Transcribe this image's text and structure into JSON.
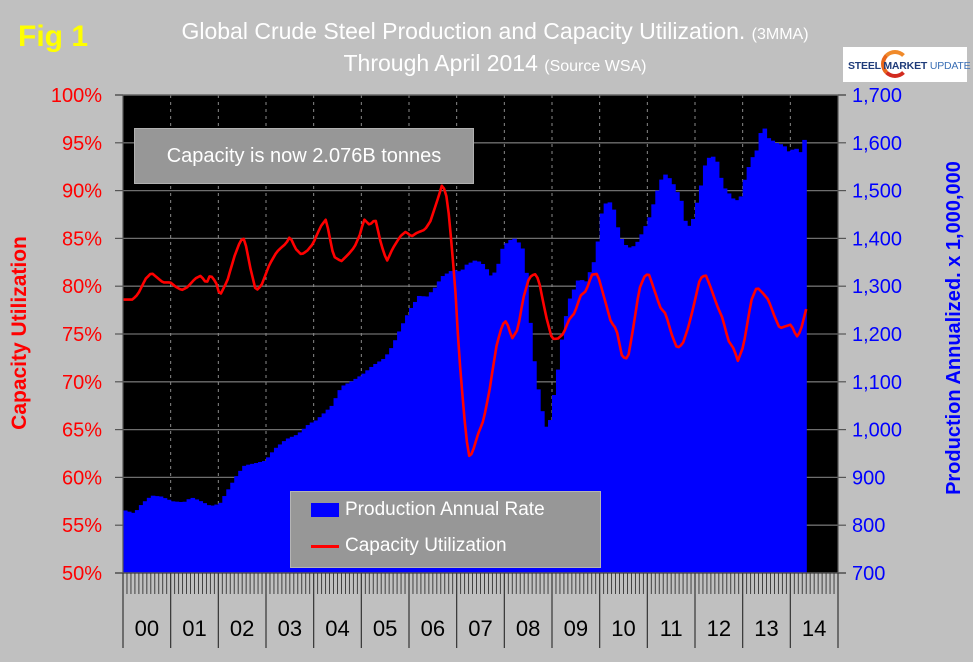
{
  "figure": {
    "fig_label": "Fig 1",
    "title_line1": "Global Crude Steel Production and Capacity Utilization.",
    "title_line1_note": "(3MMA)",
    "title_line2": "Through April 2014",
    "title_line2_note": "(Source WSA)",
    "logo": {
      "word1": "STEEL",
      "word2": "MARKET",
      "word3": "UPDATE"
    },
    "annotation": "Capacity is now 2.076B tonnes"
  },
  "chart_data": {
    "type": "bar+line",
    "title": "Global Crude Steel Production and Capacity Utilization. (3MMA) Through April 2014 (Source WSA)",
    "xlabel": "",
    "ylabel_left": "Capacity Utilization",
    "ylabel_right": "Production Annualized. x 1,000,000",
    "ylim_left": [
      50,
      100
    ],
    "ylim_right": [
      700,
      1700
    ],
    "yticks_left": [
      "50%",
      "55%",
      "60%",
      "65%",
      "70%",
      "75%",
      "80%",
      "85%",
      "90%",
      "95%",
      "100%"
    ],
    "yticks_right": [
      "700",
      "800",
      "900",
      "1,000",
      "1,100",
      "1,200",
      "1,300",
      "1,400",
      "1,500",
      "1,600",
      "1,700"
    ],
    "x_categories": [
      "00",
      "01",
      "02",
      "03",
      "04",
      "05",
      "06",
      "07",
      "08",
      "09",
      "10",
      "11",
      "12",
      "13",
      "14"
    ],
    "x_range": "Jan 2000 - Apr 2014 (monthly)",
    "grid": true,
    "legend": {
      "placement": "bottom-center",
      "entries": [
        "Production Annual Rate",
        "Capacity Utilization"
      ]
    },
    "series": [
      {
        "name": "Production Annual Rate",
        "axis": "right",
        "type": "bar",
        "color": "#0000ff",
        "points_year_fraction": [
          [
            0.0,
            832
          ],
          [
            0.3,
            825
          ],
          [
            0.5,
            845
          ],
          [
            0.75,
            862
          ],
          [
            1.0,
            860
          ],
          [
            1.3,
            850
          ],
          [
            1.6,
            848
          ],
          [
            1.8,
            858
          ],
          [
            2.0,
            852
          ],
          [
            2.3,
            840
          ],
          [
            2.55,
            845
          ],
          [
            2.75,
            872
          ],
          [
            3.0,
            905
          ],
          [
            3.2,
            925
          ],
          [
            3.5,
            930
          ],
          [
            3.75,
            935
          ],
          [
            4.0,
            960
          ],
          [
            4.3,
            980
          ],
          [
            4.6,
            990
          ],
          [
            4.9,
            1012
          ],
          [
            5.1,
            1020
          ],
          [
            5.5,
            1050
          ],
          [
            5.75,
            1090
          ],
          [
            6.0,
            1100
          ],
          [
            6.3,
            1115
          ],
          [
            6.6,
            1135
          ],
          [
            6.9,
            1150
          ],
          [
            7.1,
            1175
          ],
          [
            7.3,
            1210
          ],
          [
            7.55,
            1250
          ],
          [
            7.8,
            1280
          ],
          [
            8.0,
            1278
          ],
          [
            8.2,
            1295
          ],
          [
            8.4,
            1320
          ],
          [
            8.7,
            1335
          ],
          [
            8.9,
            1330
          ],
          [
            9.05,
            1345
          ],
          [
            9.3,
            1355
          ],
          [
            9.5,
            1345
          ],
          [
            9.7,
            1320
          ],
          [
            9.85,
            1335
          ],
          [
            10.0,
            1380
          ],
          [
            10.15,
            1395
          ],
          [
            10.3,
            1400
          ],
          [
            10.5,
            1385
          ],
          [
            10.6,
            1350
          ],
          [
            10.75,
            1200
          ],
          [
            10.9,
            1095
          ],
          [
            11.0,
            1065
          ],
          [
            11.1,
            1000
          ],
          [
            11.25,
            1020
          ],
          [
            11.45,
            1120
          ],
          [
            11.6,
            1210
          ],
          [
            11.75,
            1270
          ],
          [
            12.0,
            1315
          ],
          [
            12.2,
            1310
          ],
          [
            12.45,
            1360
          ],
          [
            12.6,
            1450
          ],
          [
            12.75,
            1480
          ],
          [
            12.9,
            1470
          ],
          [
            13.0,
            1430
          ],
          [
            13.15,
            1395
          ],
          [
            13.3,
            1380
          ],
          [
            13.5,
            1385
          ],
          [
            13.7,
            1415
          ],
          [
            13.9,
            1450
          ],
          [
            14.0,
            1480
          ],
          [
            14.15,
            1520
          ],
          [
            14.3,
            1535
          ],
          [
            14.45,
            1520
          ],
          [
            14.55,
            1505
          ],
          [
            14.7,
            1480
          ],
          [
            14.85,
            1420
          ],
          [
            15.0,
            1435
          ],
          [
            15.2,
            1500
          ],
          [
            15.35,
            1560
          ],
          [
            15.5,
            1575
          ],
          [
            15.65,
            1560
          ],
          [
            15.8,
            1510
          ],
          [
            15.95,
            1495
          ],
          [
            16.1,
            1480
          ],
          [
            16.25,
            1480
          ],
          [
            16.4,
            1530
          ],
          [
            16.55,
            1565
          ],
          [
            16.7,
            1585
          ],
          [
            16.85,
            1640
          ],
          [
            17.0,
            1610
          ],
          [
            17.2,
            1600
          ],
          [
            17.4,
            1595
          ],
          [
            17.55,
            1580
          ],
          [
            17.7,
            1590
          ],
          [
            17.85,
            1580
          ],
          [
            18.0,
            1620
          ]
        ]
      },
      {
        "name": "Capacity Utilization",
        "axis": "left",
        "type": "line",
        "color": "#ff0000",
        "points_year_fraction": [
          [
            0.0,
            78.6
          ],
          [
            0.25,
            78.6
          ],
          [
            0.4,
            79.2
          ],
          [
            0.6,
            80.8
          ],
          [
            0.75,
            81.4
          ],
          [
            0.9,
            80.9
          ],
          [
            1.05,
            80.4
          ],
          [
            1.25,
            80.4
          ],
          [
            1.4,
            79.9
          ],
          [
            1.55,
            79.6
          ],
          [
            1.7,
            79.9
          ],
          [
            1.9,
            80.8
          ],
          [
            2.05,
            81.1
          ],
          [
            2.2,
            80.3
          ],
          [
            2.3,
            81.2
          ],
          [
            2.45,
            80.4
          ],
          [
            2.55,
            79.0
          ],
          [
            2.75,
            80.6
          ],
          [
            2.95,
            83.3
          ],
          [
            3.1,
            84.8
          ],
          [
            3.2,
            85.0
          ],
          [
            3.35,
            82.0
          ],
          [
            3.5,
            79.5
          ],
          [
            3.65,
            80.1
          ],
          [
            3.85,
            82.2
          ],
          [
            4.05,
            83.6
          ],
          [
            4.3,
            84.5
          ],
          [
            4.4,
            85.2
          ],
          [
            4.55,
            83.9
          ],
          [
            4.7,
            83.3
          ],
          [
            4.85,
            83.7
          ],
          [
            5.0,
            84.4
          ],
          [
            5.2,
            86.2
          ],
          [
            5.35,
            87.0
          ],
          [
            5.55,
            83.1
          ],
          [
            5.75,
            82.6
          ],
          [
            5.95,
            83.4
          ],
          [
            6.1,
            84.1
          ],
          [
            6.25,
            85.5
          ],
          [
            6.35,
            87.0
          ],
          [
            6.5,
            86.4
          ],
          [
            6.65,
            87.0
          ],
          [
            6.8,
            84.4
          ],
          [
            6.95,
            82.6
          ],
          [
            7.1,
            83.9
          ],
          [
            7.3,
            85.2
          ],
          [
            7.45,
            85.7
          ],
          [
            7.6,
            85.2
          ],
          [
            7.75,
            85.6
          ],
          [
            7.95,
            85.9
          ],
          [
            8.1,
            86.8
          ],
          [
            8.25,
            88.6
          ],
          [
            8.4,
            90.5
          ],
          [
            8.5,
            90.0
          ],
          [
            8.6,
            87.0
          ],
          [
            8.75,
            80.0
          ],
          [
            8.85,
            73.0
          ],
          [
            9.0,
            66.0
          ],
          [
            9.1,
            62.2
          ],
          [
            9.2,
            62.5
          ],
          [
            9.35,
            64.5
          ],
          [
            9.5,
            66.0
          ],
          [
            9.65,
            69.0
          ],
          [
            9.85,
            74.0
          ],
          [
            10.0,
            76.0
          ],
          [
            10.1,
            76.4
          ],
          [
            10.25,
            74.5
          ],
          [
            10.4,
            75.5
          ],
          [
            10.55,
            78.8
          ],
          [
            10.7,
            80.9
          ],
          [
            10.85,
            81.3
          ],
          [
            10.95,
            80.7
          ],
          [
            11.15,
            76.8
          ],
          [
            11.3,
            74.5
          ],
          [
            11.45,
            74.5
          ],
          [
            11.6,
            75.0
          ],
          [
            11.75,
            76.5
          ],
          [
            11.9,
            77.2
          ],
          [
            12.05,
            79.0
          ],
          [
            12.2,
            79.5
          ],
          [
            12.35,
            81.2
          ],
          [
            12.5,
            81.3
          ],
          [
            12.7,
            78.5
          ],
          [
            12.85,
            76.3
          ],
          [
            13.0,
            75.5
          ],
          [
            13.15,
            72.6
          ],
          [
            13.3,
            72.4
          ],
          [
            13.45,
            75.8
          ],
          [
            13.6,
            79.7
          ],
          [
            13.75,
            81.1
          ],
          [
            13.85,
            81.3
          ],
          [
            14.0,
            79.6
          ],
          [
            14.15,
            77.8
          ],
          [
            14.3,
            77.1
          ],
          [
            14.45,
            75.0
          ],
          [
            14.6,
            73.5
          ],
          [
            14.75,
            74.0
          ],
          [
            14.9,
            75.8
          ],
          [
            15.05,
            78.2
          ],
          [
            15.2,
            80.8
          ],
          [
            15.35,
            81.2
          ],
          [
            15.5,
            79.7
          ],
          [
            15.65,
            78.0
          ],
          [
            15.8,
            76.6
          ],
          [
            15.95,
            74.3
          ],
          [
            16.1,
            73.4
          ],
          [
            16.2,
            72.2
          ],
          [
            16.35,
            73.8
          ],
          [
            16.55,
            78.5
          ],
          [
            16.7,
            79.9
          ],
          [
            16.85,
            79.3
          ],
          [
            17.0,
            78.6
          ],
          [
            17.15,
            77.0
          ],
          [
            17.3,
            75.6
          ],
          [
            17.45,
            75.8
          ],
          [
            17.6,
            76.0
          ],
          [
            17.75,
            74.7
          ],
          [
            17.85,
            75.3
          ],
          [
            18.0,
            77.6
          ],
          [
            18.1,
            78.4
          ]
        ]
      }
    ]
  }
}
